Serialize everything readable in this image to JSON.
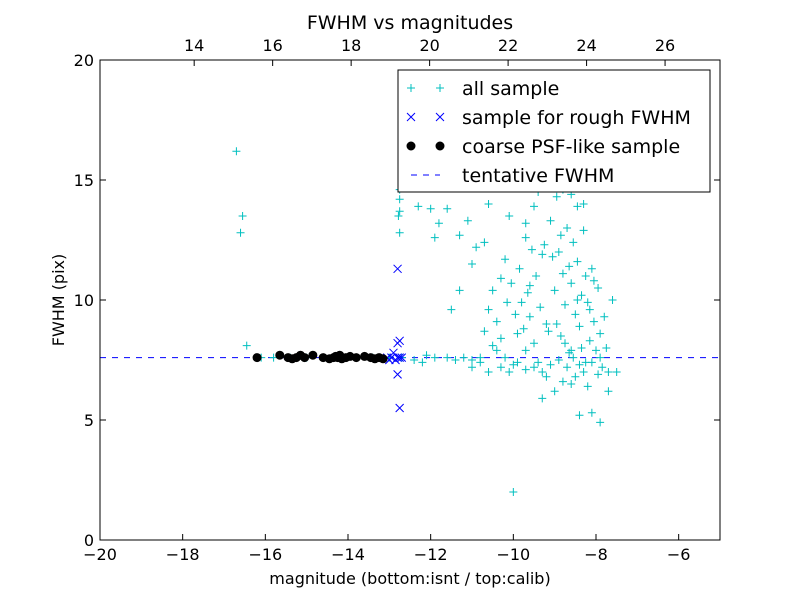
{
  "chart_data": {
    "type": "scatter",
    "title": "FWHM vs magnitudes",
    "xlabel": "magnitude (bottom:isnt / top:calib)",
    "ylabel": "FWHM (pix)",
    "xlim": [
      -20,
      -5
    ],
    "ylim": [
      0,
      20
    ],
    "x_ticks": [
      -20,
      -18,
      -16,
      -14,
      -12,
      -10,
      -8,
      -6
    ],
    "x_tick_labels": [
      "−20",
      "−18",
      "−16",
      "−14",
      "−12",
      "−10",
      "−8",
      "−6"
    ],
    "y_ticks": [
      0,
      5,
      10,
      15,
      20
    ],
    "y_tick_labels": [
      "0",
      "5",
      "10",
      "15",
      "20"
    ],
    "top_axis": {
      "lim": [
        11.6,
        27.4
      ],
      "ticks": [
        14,
        16,
        18,
        20,
        22,
        24,
        26
      ],
      "tick_labels": [
        "14",
        "16",
        "18",
        "20",
        "22",
        "24",
        "26"
      ]
    },
    "grid": false,
    "legend_position": "top-right",
    "series": [
      {
        "name": "all sample",
        "marker": "plus",
        "color": "#00bfbf",
        "points": [
          [
            -16.7,
            16.2
          ],
          [
            -16.55,
            13.5
          ],
          [
            -16.6,
            12.8
          ],
          [
            -16.45,
            8.1
          ],
          [
            -16.1,
            7.6
          ],
          [
            -15.8,
            7.6
          ],
          [
            -15.4,
            7.6
          ],
          [
            -15.0,
            7.6
          ],
          [
            -14.6,
            7.6
          ],
          [
            -14.2,
            7.6
          ],
          [
            -13.8,
            7.6
          ],
          [
            -13.4,
            7.6
          ],
          [
            -13.0,
            7.6
          ],
          [
            -12.75,
            14.6
          ],
          [
            -12.75,
            14.2
          ],
          [
            -12.75,
            13.7
          ],
          [
            -12.78,
            13.5
          ],
          [
            -12.75,
            12.8
          ],
          [
            -12.7,
            7.6
          ],
          [
            -12.4,
            7.5
          ],
          [
            -12.2,
            7.4
          ],
          [
            -12.1,
            7.7
          ],
          [
            -11.9,
            7.6
          ],
          [
            -11.6,
            7.6
          ],
          [
            -11.4,
            7.5
          ],
          [
            -11.2,
            7.6
          ],
          [
            -11.0,
            7.5
          ],
          [
            -10.8,
            7.6
          ],
          [
            -12.3,
            13.9
          ],
          [
            -12.0,
            13.8
          ],
          [
            -11.9,
            12.6
          ],
          [
            -11.8,
            13.2
          ],
          [
            -11.6,
            13.8
          ],
          [
            -11.3,
            12.7
          ],
          [
            -11.5,
            9.6
          ],
          [
            -11.3,
            10.4
          ],
          [
            -11.0,
            11.5
          ],
          [
            -11.1,
            13.3
          ],
          [
            -10.9,
            12.2
          ],
          [
            -10.7,
            12.4
          ],
          [
            -10.6,
            14.0
          ],
          [
            -10.5,
            10.4
          ],
          [
            -10.5,
            8.1
          ],
          [
            -10.4,
            9.1
          ],
          [
            -10.3,
            10.9
          ],
          [
            -10.2,
            11.7
          ],
          [
            -10.1,
            13.5
          ],
          [
            -10.0,
            15.0
          ],
          [
            -10.2,
            7.6
          ],
          [
            -10.0,
            7.3
          ],
          [
            -9.9,
            8.6
          ],
          [
            -9.8,
            9.9
          ],
          [
            -9.7,
            12.6
          ],
          [
            -9.6,
            10.6
          ],
          [
            -9.5,
            13.9
          ],
          [
            -9.4,
            7.4
          ],
          [
            -9.3,
            11.9
          ],
          [
            -9.2,
            9.0
          ],
          [
            -10.0,
            2.0
          ],
          [
            -9.3,
            5.9
          ],
          [
            -9.0,
            6.2
          ],
          [
            -8.6,
            6.5
          ],
          [
            -8.4,
            5.2
          ],
          [
            -8.1,
            5.3
          ],
          [
            -7.9,
            4.9
          ],
          [
            -7.7,
            6.2
          ],
          [
            -7.6,
            10.0
          ],
          [
            -7.5,
            7.0
          ],
          [
            -9.1,
            13.3
          ],
          [
            -9.0,
            10.4
          ],
          [
            -8.95,
            14.3
          ],
          [
            -8.9,
            12.0
          ],
          [
            -8.85,
            8.5
          ],
          [
            -8.8,
            11.1
          ],
          [
            -8.75,
            9.8
          ],
          [
            -8.7,
            13.0
          ],
          [
            -8.65,
            7.8
          ],
          [
            -8.6,
            10.7
          ],
          [
            -8.55,
            12.4
          ],
          [
            -8.5,
            9.4
          ],
          [
            -8.45,
            11.6
          ],
          [
            -8.4,
            8.9
          ],
          [
            -8.35,
            10.2
          ],
          [
            -8.3,
            12.9
          ],
          [
            -8.25,
            7.4
          ],
          [
            -8.2,
            9.9
          ],
          [
            -8.15,
            8.3
          ],
          [
            -8.1,
            11.3
          ],
          [
            -8.05,
            9.1
          ],
          [
            -8.0,
            7.9
          ],
          [
            -7.95,
            10.5
          ],
          [
            -7.9,
            8.6
          ],
          [
            -7.85,
            7.2
          ],
          [
            -7.8,
            9.3
          ],
          [
            -7.75,
            8.0
          ],
          [
            -7.7,
            7.0
          ],
          [
            -7.95,
            6.9
          ],
          [
            -8.2,
            6.4
          ],
          [
            -9.4,
            14.5
          ],
          [
            -9.2,
            15.1
          ],
          [
            -9.0,
            14.8
          ],
          [
            -8.9,
            15.6
          ],
          [
            -8.8,
            14.6
          ],
          [
            -8.7,
            15.9
          ],
          [
            -8.6,
            14.4
          ],
          [
            -8.5,
            15.2
          ],
          [
            -8.45,
            13.9
          ],
          [
            -8.3,
            14.0
          ],
          [
            -9.6,
            9.3
          ],
          [
            -9.5,
            8.2
          ],
          [
            -9.45,
            11.0
          ],
          [
            -9.35,
            9.7
          ],
          [
            -9.25,
            12.3
          ],
          [
            -9.15,
            8.7
          ],
          [
            -9.05,
            11.8
          ],
          [
            -8.95,
            9.0
          ],
          [
            -8.85,
            12.7
          ],
          [
            -8.75,
            8.2
          ],
          [
            -8.65,
            11.4
          ],
          [
            -8.55,
            7.6
          ],
          [
            -8.45,
            10.0
          ],
          [
            -8.35,
            8.0
          ],
          [
            -8.25,
            11.0
          ],
          [
            -8.15,
            9.6
          ],
          [
            -8.05,
            10.8
          ],
          [
            -9.7,
            7.9
          ],
          [
            -9.65,
            10.3
          ],
          [
            -9.55,
            12.1
          ],
          [
            -10.7,
            8.7
          ],
          [
            -10.6,
            9.6
          ],
          [
            -10.4,
            7.9
          ],
          [
            -10.3,
            8.4
          ],
          [
            -10.15,
            9.9
          ],
          [
            -10.05,
            10.7
          ],
          [
            -9.95,
            9.4
          ],
          [
            -9.85,
            11.3
          ],
          [
            -9.75,
            8.8
          ],
          [
            -9.7,
            13.2
          ],
          [
            -11.0,
            7.2
          ],
          [
            -10.8,
            7.4
          ],
          [
            -10.6,
            7.0
          ],
          [
            -10.3,
            7.2
          ],
          [
            -10.1,
            7.0
          ],
          [
            -9.9,
            7.4
          ],
          [
            -9.7,
            7.1
          ],
          [
            -9.5,
            7.2
          ],
          [
            -9.3,
            7.0
          ],
          [
            -9.1,
            7.3
          ],
          [
            -8.9,
            7.5
          ],
          [
            -8.7,
            7.2
          ],
          [
            -8.5,
            6.8
          ],
          [
            -8.3,
            7.0
          ],
          [
            -8.1,
            7.4
          ],
          [
            -7.9,
            7.6
          ],
          [
            -8.8,
            6.6
          ],
          [
            -9.2,
            6.8
          ],
          [
            -8.6,
            7.9
          ],
          [
            -8.4,
            7.3
          ]
        ]
      },
      {
        "name": "sample for rough FWHM",
        "marker": "x",
        "color": "#0000ff",
        "points": [
          [
            -12.8,
            11.3
          ],
          [
            -12.75,
            8.3
          ],
          [
            -12.8,
            8.2
          ],
          [
            -12.8,
            7.6
          ],
          [
            -12.9,
            7.8
          ],
          [
            -12.75,
            7.6
          ],
          [
            -12.95,
            7.6
          ],
          [
            -12.85,
            7.5
          ],
          [
            -12.7,
            7.6
          ],
          [
            -13.05,
            7.6
          ],
          [
            -13.0,
            7.5
          ],
          [
            -12.8,
            6.9
          ],
          [
            -12.75,
            5.5
          ]
        ]
      },
      {
        "name": "coarse PSF-like sample",
        "marker": "circle",
        "color": "#000000",
        "points": [
          [
            -16.2,
            7.6
          ],
          [
            -15.65,
            7.7
          ],
          [
            -15.45,
            7.6
          ],
          [
            -15.35,
            7.55
          ],
          [
            -15.25,
            7.6
          ],
          [
            -15.15,
            7.7
          ],
          [
            -15.05,
            7.6
          ],
          [
            -14.85,
            7.7
          ],
          [
            -14.6,
            7.6
          ],
          [
            -14.45,
            7.55
          ],
          [
            -14.35,
            7.6
          ],
          [
            -14.3,
            7.65
          ],
          [
            -14.25,
            7.6
          ],
          [
            -14.2,
            7.7
          ],
          [
            -14.15,
            7.55
          ],
          [
            -14.05,
            7.6
          ],
          [
            -13.95,
            7.65
          ],
          [
            -13.8,
            7.6
          ],
          [
            -13.6,
            7.65
          ],
          [
            -13.45,
            7.6
          ],
          [
            -13.35,
            7.55
          ],
          [
            -13.25,
            7.6
          ],
          [
            -13.15,
            7.55
          ]
        ]
      },
      {
        "name": "tentative FWHM",
        "type": "hline",
        "linestyle": "dashed",
        "color": "#0000ff",
        "y": 7.6
      }
    ]
  }
}
